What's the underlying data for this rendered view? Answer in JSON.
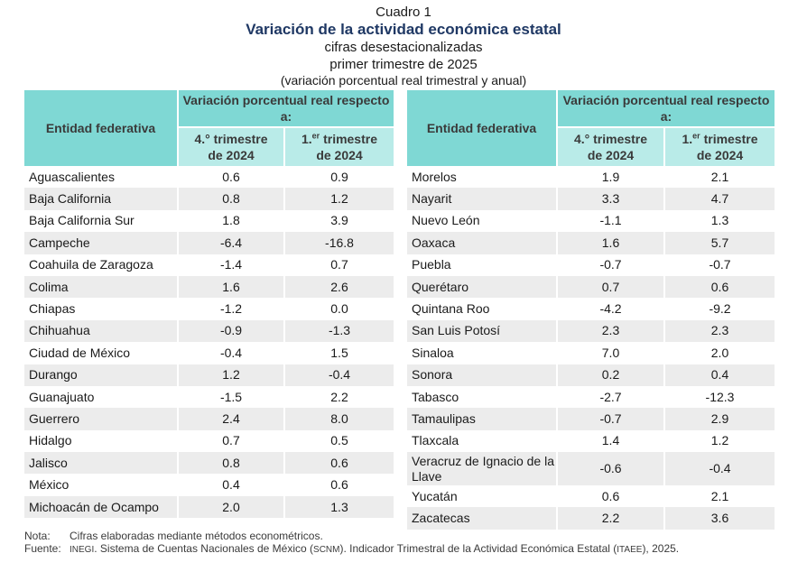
{
  "header": {
    "label": "Cuadro 1",
    "title": "Variación de la actividad económica estatal",
    "subtitle1": "cifras desestacionalizadas",
    "subtitle2": "primer trimestre de 2025",
    "subtitle3": "(variación porcentual real trimestral y anual)"
  },
  "columns": {
    "entity": "Entidad federativa",
    "variation": "Variación porcentual real respecto a:",
    "col1_a": "4.° trimestre",
    "col1_b": "de 2024",
    "col2_pre": "1.",
    "col2_sup": "er",
    "col2_post": " trimestre",
    "col2_b": "de 2024"
  },
  "left_rows": [
    {
      "name": "Aguascalientes",
      "q4": "0.6",
      "q1": "0.9"
    },
    {
      "name": "Baja California",
      "q4": "0.8",
      "q1": "1.2"
    },
    {
      "name": "Baja California Sur",
      "q4": "1.8",
      "q1": "3.9"
    },
    {
      "name": "Campeche",
      "q4": "-6.4",
      "q1": "-16.8"
    },
    {
      "name": "Coahuila de Zaragoza",
      "q4": "-1.4",
      "q1": "0.7"
    },
    {
      "name": "Colima",
      "q4": "1.6",
      "q1": "2.6"
    },
    {
      "name": "Chiapas",
      "q4": "-1.2",
      "q1": "0.0"
    },
    {
      "name": "Chihuahua",
      "q4": "-0.9",
      "q1": "-1.3"
    },
    {
      "name": "Ciudad de México",
      "q4": "-0.4",
      "q1": "1.5"
    },
    {
      "name": "Durango",
      "q4": "1.2",
      "q1": "-0.4"
    },
    {
      "name": "Guanajuato",
      "q4": "-1.5",
      "q1": "2.2"
    },
    {
      "name": "Guerrero",
      "q4": "2.4",
      "q1": "8.0"
    },
    {
      "name": "Hidalgo",
      "q4": "0.7",
      "q1": "0.5"
    },
    {
      "name": "Jalisco",
      "q4": "0.8",
      "q1": "0.6"
    },
    {
      "name": "México",
      "q4": "0.4",
      "q1": "0.6"
    },
    {
      "name": "Michoacán de Ocampo",
      "q4": "2.0",
      "q1": "1.3"
    }
  ],
  "right_rows": [
    {
      "name": "Morelos",
      "q4": "1.9",
      "q1": "2.1"
    },
    {
      "name": "Nayarit",
      "q4": "3.3",
      "q1": "4.7"
    },
    {
      "name": "Nuevo León",
      "q4": "-1.1",
      "q1": "1.3"
    },
    {
      "name": "Oaxaca",
      "q4": "1.6",
      "q1": "5.7"
    },
    {
      "name": "Puebla",
      "q4": "-0.7",
      "q1": "-0.7"
    },
    {
      "name": "Querétaro",
      "q4": "0.7",
      "q1": "0.6"
    },
    {
      "name": "Quintana Roo",
      "q4": "-4.2",
      "q1": "-9.2"
    },
    {
      "name": "San Luis Potosí",
      "q4": "2.3",
      "q1": "2.3"
    },
    {
      "name": "Sinaloa",
      "q4": "7.0",
      "q1": "2.0"
    },
    {
      "name": "Sonora",
      "q4": "0.2",
      "q1": "0.4"
    },
    {
      "name": "Tabasco",
      "q4": "-2.7",
      "q1": "-12.3"
    },
    {
      "name": "Tamaulipas",
      "q4": "-0.7",
      "q1": "2.9"
    },
    {
      "name": "Tlaxcala",
      "q4": "1.4",
      "q1": "1.2"
    },
    {
      "name": "Veracruz de Ignacio de la Llave",
      "q4": "-0.6",
      "q1": "-0.4"
    },
    {
      "name": "Yucatán",
      "q4": "0.6",
      "q1": "2.1"
    },
    {
      "name": "Zacatecas",
      "q4": "2.2",
      "q1": "3.6"
    }
  ],
  "notes": {
    "note_label": "Nota:",
    "note_text": "Cifras elaboradas mediante métodos econométricos.",
    "source_label": "Fuente:",
    "source_inegi": "INEGI",
    "source_text1": ". Sistema de Cuentas Nacionales de México (",
    "source_scnm": "SCNM",
    "source_text2": "). Indicador Trimestral de la Actividad Económica Estatal (",
    "source_itaee": "ITAEE",
    "source_text3": "), 2025."
  },
  "colors": {
    "header_dark": "#7fd8d4",
    "header_light": "#b9ebe8",
    "row_alt": "#ececec",
    "title": "#1f3864"
  }
}
